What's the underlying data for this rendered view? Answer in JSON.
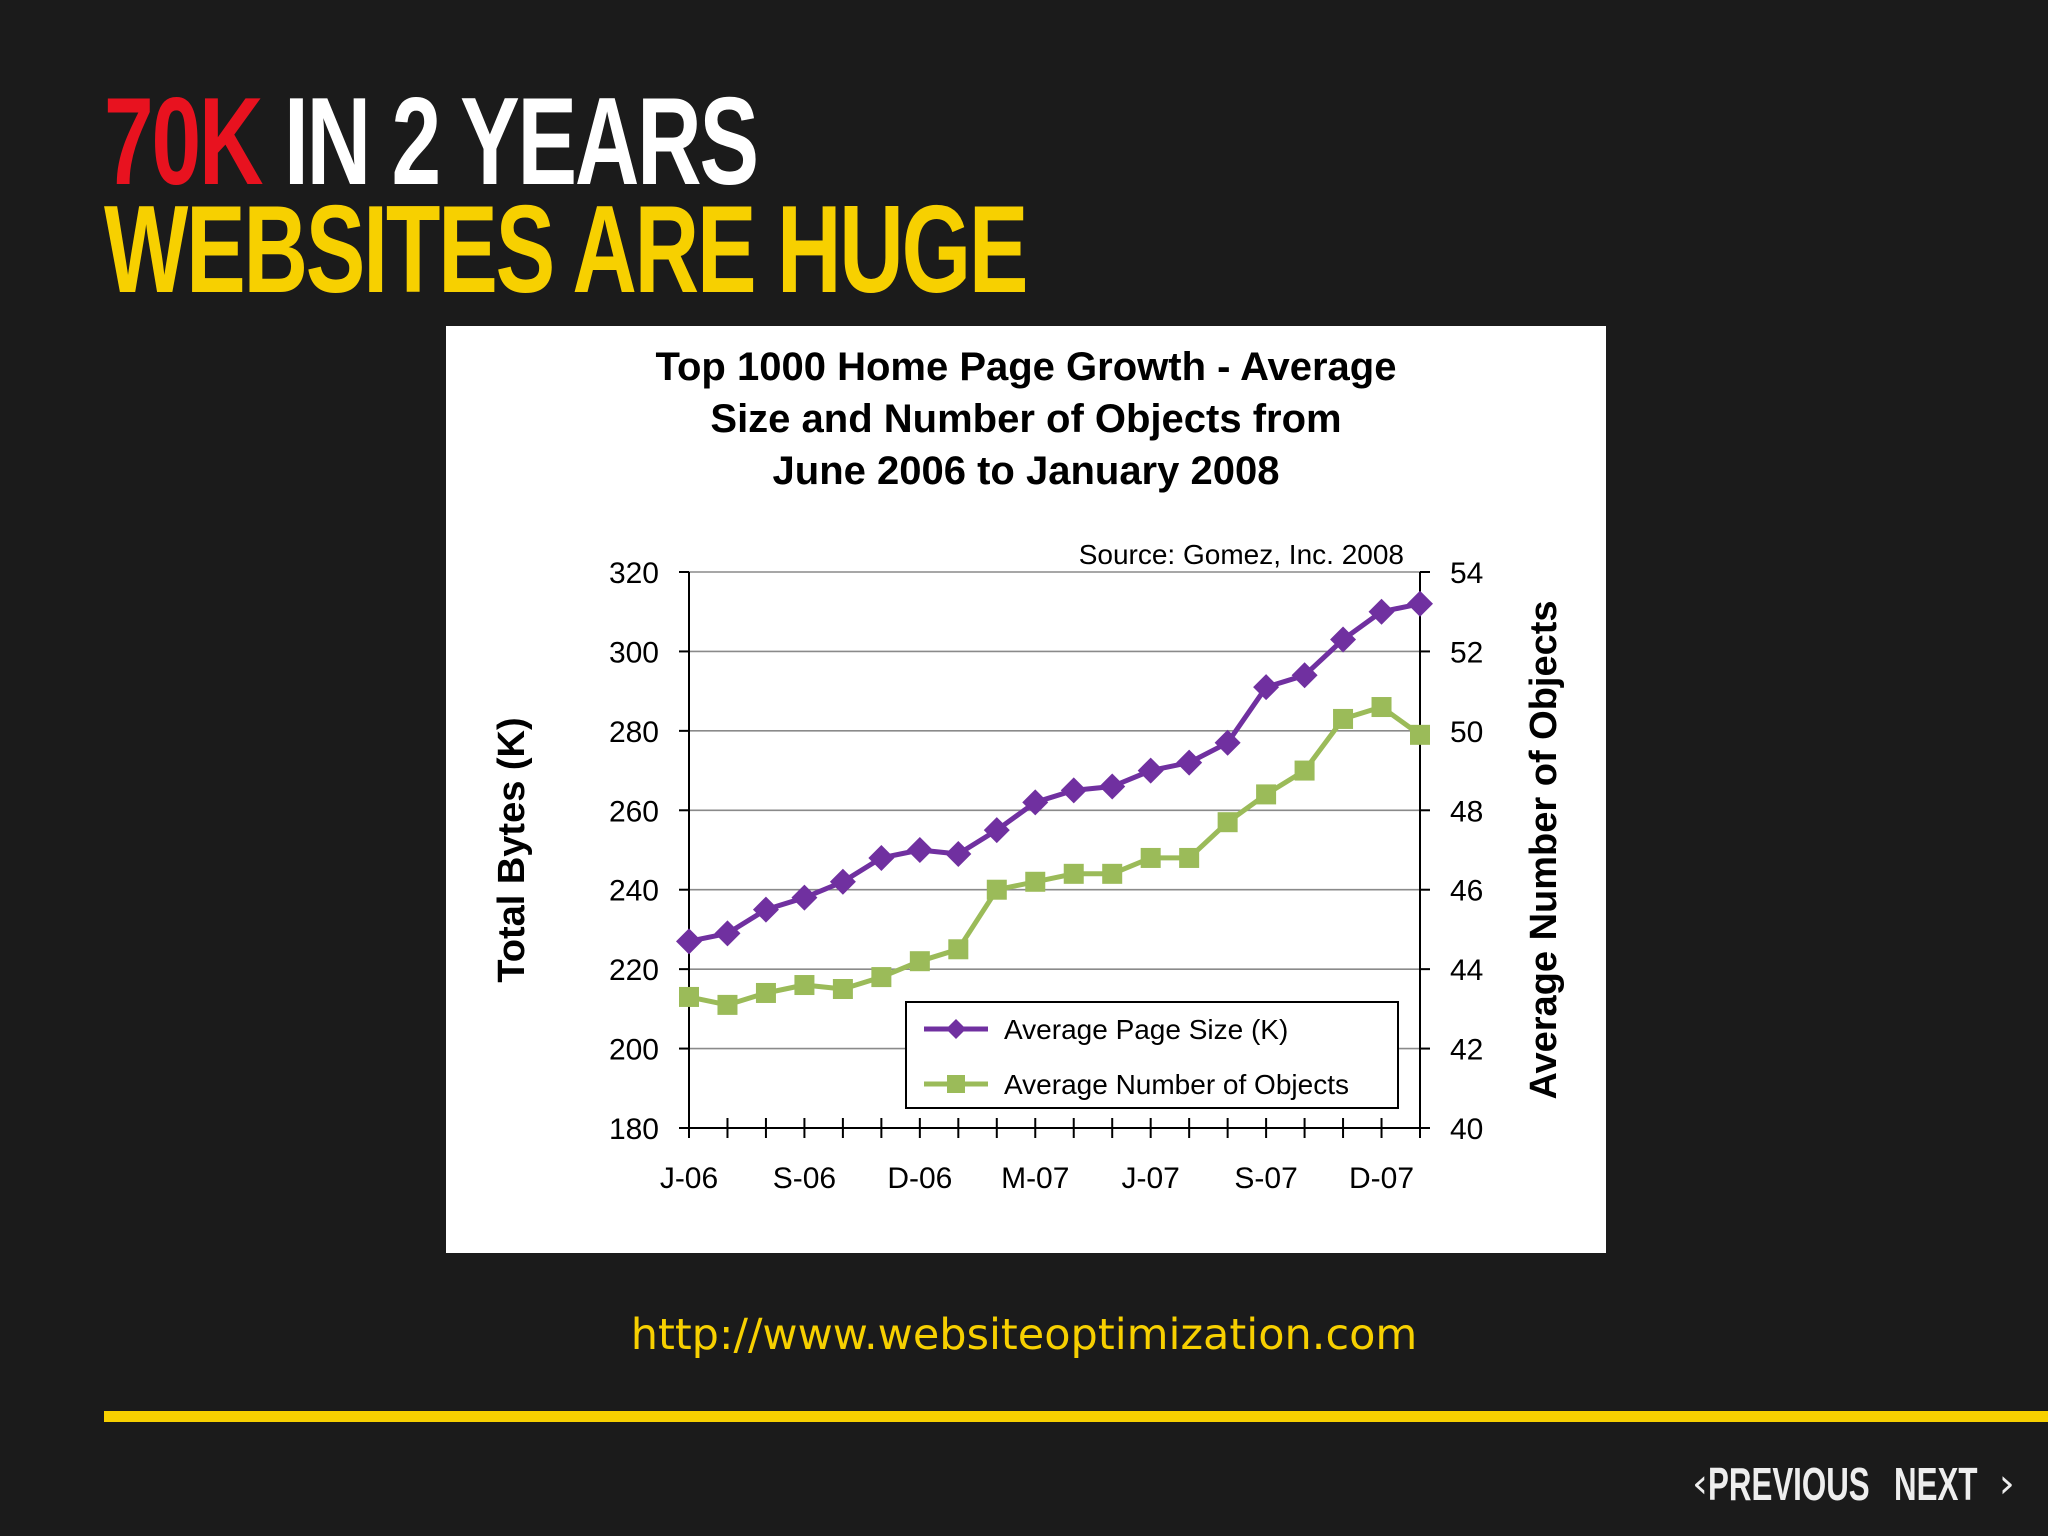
{
  "slide": {
    "title_line1": {
      "red": "70K",
      "white": "IN 2 YEARS"
    },
    "title_line2": "WEBSITES ARE HUGE",
    "source_url": "http://www.websiteoptimization.com",
    "nav": {
      "previous": "PREVIOUS",
      "next": "NEXT"
    }
  },
  "colors": {
    "background": "#1b1b1b",
    "accent_yellow": "#f7d000",
    "accent_red": "#e8121f",
    "series_page_size": "#7030a0",
    "series_objects": "#9bbb59"
  },
  "chart_data": {
    "type": "line",
    "title_lines": [
      "Top 1000 Home Page Growth  - Average",
      "Size and Number of Objects from",
      "June 2006 to January 2008"
    ],
    "annotation": "Source: Gomez, Inc. 2008",
    "ylabel": "Total Bytes (K)",
    "y2label": "Average Number of Objects",
    "ylim": [
      180,
      320
    ],
    "y2lim": [
      40,
      54
    ],
    "yticks": [
      "180",
      "200",
      "220",
      "240",
      "260",
      "280",
      "300",
      "320"
    ],
    "y2ticks": [
      "40",
      "42",
      "44",
      "46",
      "48",
      "50",
      "52",
      "54"
    ],
    "xtick_labels": [
      "J-06",
      "S-06",
      "D-06",
      "M-07",
      "J-07",
      "S-07",
      "D-07"
    ],
    "grid": true,
    "legend_position": "bottom-right",
    "series": [
      {
        "name": "Average Page Size (K)",
        "axis": "left",
        "marker": "diamond",
        "values": [
          227,
          229,
          235,
          238,
          242,
          248,
          250,
          249,
          255,
          262,
          265,
          266,
          270,
          272,
          277,
          291,
          294,
          303,
          310,
          312
        ]
      },
      {
        "name": "Average Number of Objects",
        "axis": "right",
        "marker": "square",
        "values": [
          43.3,
          43.1,
          43.4,
          43.6,
          43.5,
          43.8,
          44.2,
          44.5,
          46.0,
          46.2,
          46.4,
          46.4,
          46.8,
          46.8,
          47.7,
          48.4,
          49.0,
          50.3,
          50.6,
          49.9
        ]
      }
    ]
  }
}
